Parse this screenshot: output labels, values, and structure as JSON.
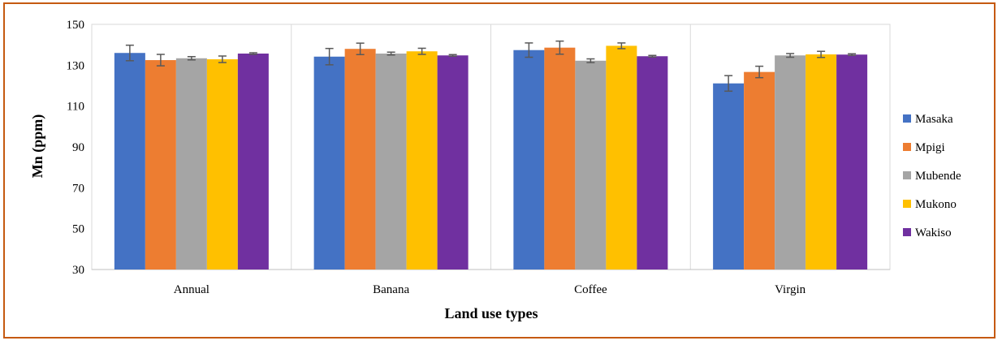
{
  "chart_data": {
    "type": "bar",
    "title": "",
    "xlabel": "Land use types",
    "ylabel": "Mn (ppm)",
    "ylim": [
      30,
      150
    ],
    "yticks": [
      30,
      50,
      70,
      90,
      110,
      130,
      150
    ],
    "categories": [
      "Annual",
      "Banana",
      "Coffee",
      "Virgin"
    ],
    "series": [
      {
        "name": "Masaka",
        "color": "#4472c4",
        "values": [
          136.0,
          134.2,
          137.4,
          121.1
        ],
        "errors": [
          3.8,
          4.0,
          3.5,
          3.8
        ]
      },
      {
        "name": "Mpigi",
        "color": "#ed7d31",
        "values": [
          132.5,
          138.0,
          138.6,
          126.7
        ],
        "errors": [
          2.8,
          2.8,
          3.2,
          2.8
        ]
      },
      {
        "name": "Mubende",
        "color": "#a5a5a5",
        "values": [
          133.4,
          135.7,
          132.2,
          134.8
        ],
        "errors": [
          0.8,
          0.7,
          0.9,
          0.9
        ]
      },
      {
        "name": "Mukono",
        "color": "#ffc000",
        "values": [
          132.9,
          136.8,
          139.5,
          135.3
        ],
        "errors": [
          1.6,
          1.5,
          1.4,
          1.5
        ]
      },
      {
        "name": "Wakiso",
        "color": "#7030a0",
        "values": [
          135.7,
          134.8,
          134.4,
          135.2
        ],
        "errors": [
          0.4,
          0.4,
          0.4,
          0.4
        ]
      }
    ],
    "grid": "vertical separators between categories",
    "legend_position": "right"
  }
}
